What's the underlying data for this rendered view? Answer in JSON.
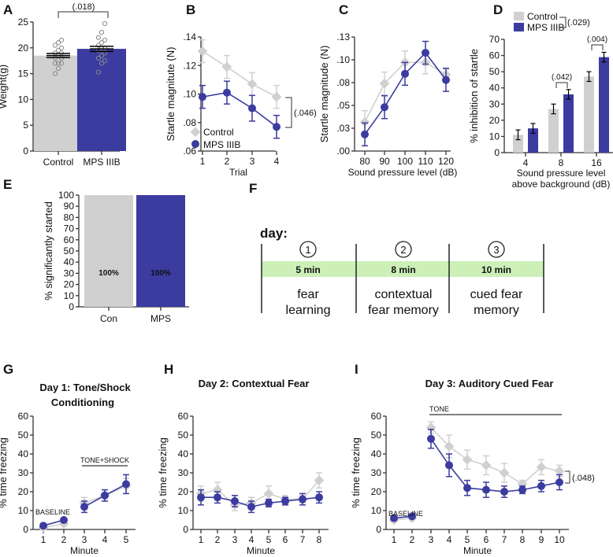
{
  "colors": {
    "control": "#d0d0d0",
    "mps": "#3b3ba0",
    "axis": "#333333",
    "timeline": "#ccf0b8"
  },
  "chart_data": [
    {
      "panel": "A",
      "type": "bar",
      "categories": [
        "Control",
        "MPS IIIB"
      ],
      "values": [
        18.5,
        19.8
      ],
      "errors": [
        0.4,
        0.5
      ],
      "points": [
        [
          15,
          16,
          17,
          17,
          17,
          18,
          18,
          18.5,
          19,
          19,
          19.5,
          20,
          20.5,
          21,
          21.5
        ],
        [
          15.3,
          17,
          17.5,
          18,
          18.5,
          19,
          19.5,
          20,
          20,
          20.5,
          21,
          21.5,
          22,
          23,
          24.7
        ]
      ],
      "ylabel": "Weight(g)",
      "ylim": [
        0,
        25
      ],
      "yticks": [
        0,
        5,
        10,
        15,
        20,
        25
      ],
      "annotations": [
        "(.018)"
      ]
    },
    {
      "panel": "B",
      "type": "line",
      "x": [
        1,
        2,
        3,
        4
      ],
      "xlabel": "Trial",
      "ylabel": "Startle magnitute (N)",
      "ylim": [
        0.06,
        0.14
      ],
      "yticks": [
        ".06",
        ".08",
        ".10",
        ".12",
        ".14"
      ],
      "legend": "bottom-left",
      "series": [
        {
          "name": "Control",
          "values": [
            0.13,
            0.119,
            0.107,
            0.098
          ],
          "errors": [
            0.008,
            0.008,
            0.008,
            0.008
          ]
        },
        {
          "name": "MPS IIIB",
          "values": [
            0.098,
            0.101,
            0.09,
            0.077
          ],
          "errors": [
            0.008,
            0.008,
            0.009,
            0.008
          ]
        }
      ],
      "annotations": [
        "(.046)"
      ]
    },
    {
      "panel": "C",
      "type": "line",
      "x": [
        80,
        90,
        100,
        110,
        120
      ],
      "xlabel": "Sound pressure level (dB)",
      "ylabel": "Startle magnitude (N)",
      "ylim": [
        0,
        0.13
      ],
      "yticks": [
        ".00",
        ".03",
        ".05",
        ".08",
        ".10",
        ".13"
      ],
      "series": [
        {
          "values": [
            0.033,
            0.077,
            0.101,
            0.101,
            0.087
          ],
          "errors": [
            0.013,
            0.013,
            0.013,
            0.013,
            0.008
          ]
        },
        {
          "values": [
            0.019,
            0.05,
            0.088,
            0.112,
            0.081
          ],
          "errors": [
            0.013,
            0.013,
            0.013,
            0.013,
            0.013
          ]
        }
      ]
    },
    {
      "panel": "D",
      "type": "bar",
      "categories": [
        "4",
        "8",
        "16"
      ],
      "xlabel": "Sound pressure level above background (dB)",
      "ylabel": "% inhibition of startle",
      "ylim": [
        0,
        70
      ],
      "yticks": [
        0,
        10,
        20,
        30,
        40,
        50,
        60,
        70
      ],
      "legend": "top",
      "series": [
        {
          "name": "Control",
          "values": [
            11,
            27,
            47
          ],
          "errors": [
            3,
            3,
            3
          ]
        },
        {
          "name": "MPS IIIB",
          "values": [
            15,
            36,
            59
          ],
          "errors": [
            3,
            3,
            3
          ]
        }
      ],
      "annotations": [
        "(.029)",
        "(.042)",
        "(.004)"
      ]
    },
    {
      "panel": "E",
      "type": "bar",
      "categories": [
        "Con",
        "MPS"
      ],
      "values": [
        100,
        100
      ],
      "data_labels": [
        "100%",
        "100%"
      ],
      "ylabel": "% significantly started",
      "ylim": [
        0,
        100
      ],
      "yticks": [
        0,
        10,
        20,
        30,
        40,
        50,
        60,
        70,
        80,
        90,
        100
      ]
    },
    {
      "panel": "G",
      "type": "line",
      "title": "Day 1: Tone/Shock Conditioning",
      "x": [
        1,
        2,
        3,
        4,
        5
      ],
      "xlabel": "Minute",
      "ylabel": "% time freezing",
      "ylim": [
        0,
        60
      ],
      "yticks": [
        0,
        10,
        20,
        30,
        40,
        50,
        60
      ],
      "series": [
        {
          "values": [
            1,
            3,
            14,
            18,
            23
          ],
          "errors": [
            1,
            1,
            3,
            3,
            4
          ]
        },
        {
          "values": [
            2,
            5,
            12,
            18,
            24
          ],
          "errors": [
            1,
            1,
            3,
            3,
            5
          ]
        }
      ],
      "annotations": [
        "BASELINE",
        "TONE+SHOCK"
      ]
    },
    {
      "panel": "H",
      "type": "line",
      "title": "Day 2: Contextual Fear",
      "x": [
        1,
        2,
        3,
        4,
        5,
        6,
        7,
        8
      ],
      "xlabel": "Minute",
      "ylabel": "% time freezing",
      "ylim": [
        0,
        60
      ],
      "yticks": [
        0,
        10,
        20,
        30,
        40,
        50,
        60
      ],
      "series": [
        {
          "values": [
            19,
            21,
            13,
            14,
            19,
            16,
            16,
            26
          ],
          "errors": [
            4,
            4,
            3,
            3,
            4,
            2,
            2,
            4
          ]
        },
        {
          "values": [
            17,
            17,
            15,
            12,
            14,
            15,
            16,
            17
          ],
          "errors": [
            4,
            3,
            3,
            3,
            2,
            2,
            3,
            3
          ]
        }
      ]
    },
    {
      "panel": "I",
      "type": "line",
      "title": "Day 3: Auditory Cued Fear",
      "x": [
        1,
        2,
        3,
        4,
        5,
        6,
        7,
        8,
        9,
        10
      ],
      "xlabel": "Minute",
      "ylabel": "% time freezing",
      "ylim": [
        0,
        60
      ],
      "yticks": [
        0,
        10,
        20,
        30,
        40,
        50,
        60
      ],
      "series": [
        {
          "values": [
            5,
            6,
            54,
            44,
            37,
            34,
            30,
            24,
            33,
            31
          ],
          "errors": [
            1,
            1,
            3,
            6,
            5,
            5,
            5,
            2,
            4,
            3
          ]
        },
        {
          "values": [
            6,
            7,
            48,
            34,
            22,
            21,
            20,
            21,
            23,
            25
          ],
          "errors": [
            1,
            1,
            5,
            6,
            4,
            4,
            3,
            2,
            3,
            4
          ]
        }
      ],
      "annotations": [
        "BASELINE",
        "TONE",
        "(.048)"
      ]
    }
  ],
  "panel_letters": [
    "A",
    "B",
    "C",
    "D",
    "E",
    "F",
    "G",
    "H",
    "I"
  ],
  "protocol": {
    "day_label": "day:",
    "days": [
      {
        "num": "1",
        "duration": "5 min",
        "line1": "fear",
        "line2": "learning"
      },
      {
        "num": "2",
        "duration": "8 min",
        "line1": "contextual",
        "line2": "fear memory"
      },
      {
        "num": "3",
        "duration": "10 min",
        "line1": "cued fear",
        "line2": "memory"
      }
    ]
  }
}
